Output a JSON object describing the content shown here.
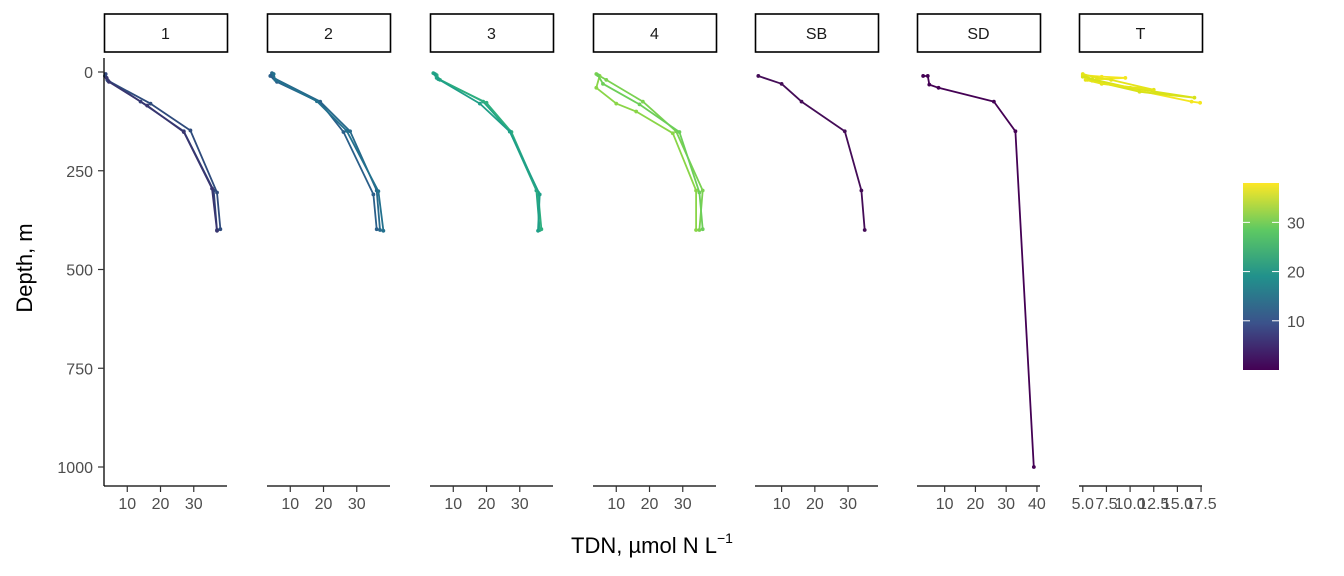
{
  "chart_data": {
    "type": "line",
    "subtype": "faceted depth profile (connected points)",
    "xlabel": "TDN, µmol N L",
    "xlabel_superscript": "−1",
    "ylabel": "Depth, m",
    "y_reversed": true,
    "ylim": [
      0,
      1050
    ],
    "y_ticks": [
      0,
      250,
      500,
      750,
      1000
    ],
    "grid": false,
    "legend": {
      "placement": "right",
      "type": "colorbar",
      "palette": "viridis",
      "range": [
        0,
        38
      ],
      "ticks": [
        10,
        20,
        30
      ],
      "colors": [
        "#440154",
        "#3b528b",
        "#21918c",
        "#5ec962",
        "#fde725"
      ]
    },
    "facets": [
      {
        "label": "1",
        "xlim": [
          3,
          40
        ],
        "x_ticks": [
          10,
          20,
          30
        ],
        "series": [
          {
            "color": "#31447a",
            "points": [
              [
                3.5,
                5
              ],
              [
                4,
                20
              ],
              [
                14,
                75
              ],
              [
                27,
                150
              ],
              [
                36,
                300
              ],
              [
                37,
                400
              ]
            ]
          },
          {
            "color": "#2f4b7c",
            "points": [
              [
                3.3,
                10
              ],
              [
                4.2,
                22
              ],
              [
                17,
                80
              ],
              [
                29,
                148
              ],
              [
                37,
                305
              ],
              [
                38,
                398
              ]
            ]
          },
          {
            "color": "#38356f",
            "points": [
              [
                3.8,
                15
              ],
              [
                4.5,
                25
              ],
              [
                16,
                85
              ],
              [
                27,
                152
              ],
              [
                35.5,
                295
              ],
              [
                37,
                402
              ]
            ]
          }
        ]
      },
      {
        "label": "2",
        "xlim": [
          3,
          40
        ],
        "x_ticks": [
          10,
          20,
          30
        ],
        "series": [
          {
            "color": "#27698b",
            "points": [
              [
                4.5,
                3
              ],
              [
                5,
                15
              ],
              [
                19,
                75
              ],
              [
                28,
                150
              ],
              [
                36,
                300
              ],
              [
                37,
                400
              ]
            ]
          },
          {
            "color": "#2a5f8a",
            "points": [
              [
                4,
                10
              ],
              [
                6,
                25
              ],
              [
                19,
                77
              ],
              [
                26,
                152
              ],
              [
                35,
                310
              ],
              [
                36,
                398
              ]
            ]
          },
          {
            "color": "#23718e",
            "points": [
              [
                5,
                5
              ],
              [
                5.5,
                20
              ],
              [
                18,
                74
              ],
              [
                27,
                149
              ],
              [
                36.5,
                302
              ],
              [
                38,
                402
              ]
            ]
          }
        ]
      },
      {
        "label": "3",
        "xlim": [
          3,
          40
        ],
        "x_ticks": [
          10,
          20,
          30
        ],
        "series": [
          {
            "color": "#24a685",
            "points": [
              [
                4,
                3
              ],
              [
                5,
                15
              ],
              [
                19,
                75
              ],
              [
                27,
                150
              ],
              [
                35,
                300
              ],
              [
                36,
                400
              ]
            ]
          },
          {
            "color": "#2eaf7f",
            "points": [
              [
                5,
                8
              ],
              [
                6,
                20
              ],
              [
                20,
                78
              ],
              [
                27.5,
                152
              ],
              [
                35.5,
                305
              ],
              [
                36.5,
                398
              ]
            ]
          },
          {
            "color": "#1f9f88",
            "points": [
              [
                4.5,
                5
              ],
              [
                5.5,
                18
              ],
              [
                18,
                80
              ],
              [
                27,
                151
              ],
              [
                36,
                310
              ],
              [
                35.5,
                402
              ]
            ]
          }
        ]
      },
      {
        "label": "4",
        "xlim": [
          3,
          40
        ],
        "x_ticks": [
          10,
          20,
          30
        ],
        "series": [
          {
            "color": "#7ad151",
            "points": [
              [
                4,
                5
              ],
              [
                7,
                20
              ],
              [
                18,
                75
              ],
              [
                28,
                150
              ],
              [
                36,
                300
              ],
              [
                35,
                400
              ]
            ]
          },
          {
            "color": "#8ad547",
            "points": [
              [
                5,
                10
              ],
              [
                4,
                40
              ],
              [
                10,
                80
              ],
              [
                16,
                100
              ],
              [
                27,
                155
              ],
              [
                34,
                300
              ],
              [
                34,
                400
              ]
            ]
          },
          {
            "color": "#6cce59",
            "points": [
              [
                4.5,
                8
              ],
              [
                6,
                30
              ],
              [
                17,
                82
              ],
              [
                29,
                152
              ],
              [
                35,
                305
              ],
              [
                36,
                398
              ]
            ]
          }
        ]
      },
      {
        "label": "SB",
        "xlim": [
          2,
          39
        ],
        "x_ticks": [
          10,
          20,
          30
        ],
        "series": [
          {
            "color": "#440c57",
            "points": [
              [
                3,
                10
              ],
              [
                10,
                30
              ],
              [
                16,
                75
              ],
              [
                29,
                150
              ],
              [
                34,
                300
              ],
              [
                35,
                400
              ]
            ]
          }
        ]
      },
      {
        "label": "SD",
        "xlim": [
          1,
          41
        ],
        "x_ticks": [
          10,
          20,
          30,
          40
        ],
        "series": [
          {
            "color": "#440154",
            "points": [
              [
                3,
                10
              ],
              [
                4.5,
                10
              ],
              [
                5,
                32
              ],
              [
                8,
                40
              ],
              [
                26,
                75
              ],
              [
                33,
                150
              ],
              [
                39,
                1000
              ]
            ]
          }
        ]
      },
      {
        "label": "T",
        "xlim": [
          4.6,
          17.6
        ],
        "x_ticks": [
          5.0,
          7.5,
          10.0,
          12.5,
          15.0,
          17.5
        ],
        "x_tick_labels": [
          "5.0",
          "7.5",
          "10.0",
          "12.5",
          "15.0",
          "17.5"
        ],
        "series": [
          {
            "color": "#f4e61e",
            "points": [
              [
                5,
                8
              ],
              [
                7,
                12
              ],
              [
                9.5,
                15
              ],
              [
                5.5,
                20
              ],
              [
                16.5,
                75
              ],
              [
                17.4,
                78
              ]
            ]
          },
          {
            "color": "#d8e219",
            "points": [
              [
                5.2,
                10
              ],
              [
                6,
                18
              ],
              [
                10,
                40
              ],
              [
                16.8,
                65
              ],
              [
                11,
                50
              ],
              [
                6,
                22
              ],
              [
                5,
                12
              ]
            ]
          },
          {
            "color": "#e5e419",
            "points": [
              [
                5,
                5
              ],
              [
                6.5,
                15
              ],
              [
                8,
                20
              ],
              [
                12.5,
                45
              ],
              [
                7,
                30
              ],
              [
                5.3,
                20
              ]
            ]
          }
        ]
      }
    ]
  }
}
